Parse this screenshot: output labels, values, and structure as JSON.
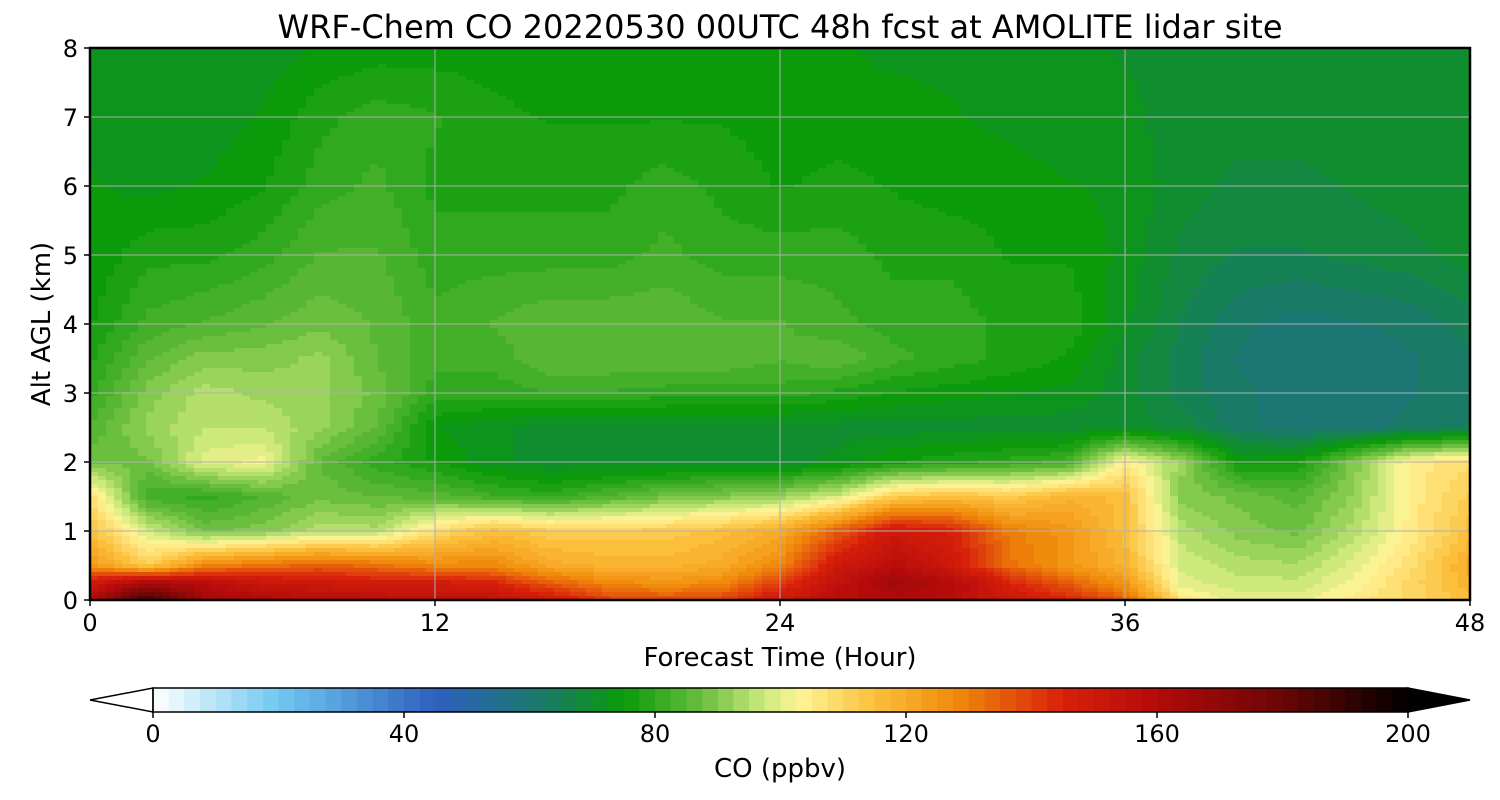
{
  "chart_data": {
    "type": "heatmap",
    "title": "WRF-Chem CO  20220530 00UTC 48h fcst at AMOLITE lidar site",
    "xlabel": "Forecast Time (Hour)",
    "ylabel": "Alt AGL (km)",
    "xlim": [
      0,
      48
    ],
    "ylim": [
      0,
      8
    ],
    "x_ticks": [
      0,
      12,
      24,
      36,
      48
    ],
    "y_ticks": [
      0,
      1,
      2,
      3,
      4,
      5,
      6,
      7,
      8
    ],
    "grid": true,
    "colorbar": {
      "label": "CO  (ppbv)",
      "range": [
        0,
        200
      ],
      "ticks": [
        0,
        40,
        80,
        120,
        160,
        200
      ],
      "extend": "both",
      "stops": [
        {
          "value": 0,
          "color": "#ffffff"
        },
        {
          "value": 20,
          "color": "#6fc8f0"
        },
        {
          "value": 45,
          "color": "#2f5fc0"
        },
        {
          "value": 62,
          "color": "#1a7a6a"
        },
        {
          "value": 75,
          "color": "#0a9a0a"
        },
        {
          "value": 88,
          "color": "#6ec040"
        },
        {
          "value": 97,
          "color": "#c8e87a"
        },
        {
          "value": 103,
          "color": "#fff496"
        },
        {
          "value": 115,
          "color": "#fbbf3c"
        },
        {
          "value": 128,
          "color": "#f08a0a"
        },
        {
          "value": 145,
          "color": "#d8200a"
        },
        {
          "value": 160,
          "color": "#b40a0a"
        },
        {
          "value": 180,
          "color": "#6a0606"
        },
        {
          "value": 200,
          "color": "#000000"
        }
      ]
    },
    "x": [
      0,
      2,
      4,
      6,
      8,
      10,
      12,
      14,
      16,
      18,
      20,
      22,
      24,
      26,
      28,
      30,
      32,
      34,
      36,
      38,
      40,
      42,
      44,
      46,
      48
    ],
    "y": [
      0,
      0.25,
      0.5,
      1,
      1.5,
      2,
      2.5,
      3,
      3.5,
      4,
      5,
      6,
      7,
      8
    ],
    "z": [
      [
        160,
        190,
        165,
        160,
        158,
        157,
        156,
        155,
        150,
        140,
        138,
        140,
        150,
        158,
        160,
        158,
        150,
        145,
        135,
        105,
        100,
        100,
        105,
        110,
        115
      ],
      [
        150,
        162,
        158,
        152,
        150,
        148,
        148,
        145,
        135,
        128,
        125,
        128,
        140,
        155,
        165,
        160,
        145,
        135,
        125,
        100,
        97,
        97,
        102,
        110,
        118
      ],
      [
        125,
        112,
        128,
        132,
        135,
        132,
        128,
        128,
        120,
        118,
        118,
        120,
        128,
        150,
        158,
        150,
        132,
        125,
        118,
        98,
        95,
        94,
        100,
        108,
        120
      ],
      [
        115,
        98,
        88,
        90,
        95,
        95,
        108,
        115,
        112,
        112,
        112,
        115,
        120,
        135,
        150,
        145,
        130,
        125,
        115,
        95,
        90,
        88,
        95,
        105,
        115
      ],
      [
        108,
        82,
        80,
        84,
        88,
        86,
        85,
        82,
        80,
        84,
        88,
        90,
        92,
        98,
        112,
        115,
        112,
        118,
        115,
        90,
        88,
        85,
        92,
        105,
        112
      ],
      [
        88,
        88,
        100,
        102,
        86,
        80,
        76,
        72,
        70,
        70,
        70,
        70,
        70,
        72,
        76,
        78,
        80,
        82,
        104,
        92,
        75,
        76,
        90,
        105,
        108
      ],
      [
        84,
        92,
        96,
        96,
        92,
        86,
        74,
        72,
        70,
        70,
        70,
        70,
        70,
        70,
        70,
        70,
        70,
        70,
        70,
        68,
        62,
        60,
        60,
        62,
        64
      ],
      [
        80,
        90,
        95,
        93,
        92,
        88,
        80,
        80,
        81,
        81,
        80,
        80,
        80,
        78,
        76,
        75,
        74,
        73,
        70,
        65,
        62,
        60,
        60,
        61,
        63
      ],
      [
        78,
        86,
        90,
        90,
        92,
        86,
        82,
        82,
        86,
        86,
        86,
        86,
        84,
        86,
        82,
        80,
        78,
        76,
        70,
        65,
        61,
        59,
        60,
        61,
        63
      ],
      [
        76,
        82,
        84,
        86,
        88,
        86,
        82,
        84,
        86,
        86,
        86,
        84,
        84,
        82,
        80,
        80,
        78,
        78,
        72,
        66,
        62,
        60,
        61,
        62,
        65
      ],
      [
        74,
        78,
        78,
        80,
        84,
        84,
        80,
        80,
        80,
        80,
        82,
        80,
        80,
        80,
        78,
        78,
        76,
        76,
        73,
        68,
        66,
        66,
        67,
        68,
        70
      ],
      [
        74,
        73,
        74,
        76,
        80,
        82,
        78,
        78,
        78,
        78,
        80,
        78,
        76,
        77,
        76,
        75,
        75,
        74,
        73,
        70,
        68,
        68,
        69,
        70,
        71
      ],
      [
        73,
        72,
        72,
        74,
        78,
        80,
        79,
        77,
        76,
        76,
        76,
        76,
        75,
        75,
        75,
        74,
        73,
        72,
        72,
        70,
        70,
        70,
        70,
        71,
        71
      ],
      [
        72,
        72,
        72,
        72,
        74,
        75,
        75,
        75,
        74,
        74,
        74,
        74,
        74,
        74,
        73,
        73,
        73,
        72,
        71,
        70,
        70,
        70,
        70,
        71,
        71
      ]
    ]
  }
}
